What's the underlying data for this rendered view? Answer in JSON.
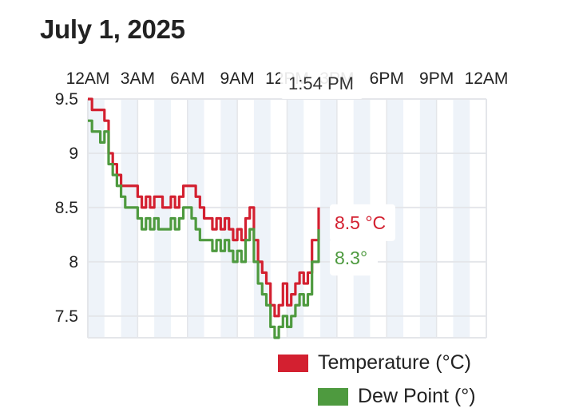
{
  "title": "July 1, 2025",
  "tooltip": {
    "time": "1:54 PM",
    "temperature_label": "8.5 °C",
    "dew_point_label": "8.3°"
  },
  "colors": {
    "temperature": "#d32030",
    "dew_point": "#4e9a3f",
    "grid": "#e4e6ea",
    "band": "#eef3f9"
  },
  "legend": [
    {
      "name": "Temperature (°C)",
      "color": "#d32030"
    },
    {
      "name": "Dew Point (°)",
      "color": "#4e9a3f"
    }
  ],
  "chart_data": {
    "type": "line",
    "title": "July 1, 2025",
    "x_unit": "hours since midnight",
    "x_tick_labels": [
      "12AM",
      "3AM",
      "6AM",
      "9AM",
      "12PM",
      "3PM",
      "6PM",
      "9PM",
      "12AM"
    ],
    "xlim": [
      0,
      24
    ],
    "y_ticks": [
      7.5,
      8,
      8.5,
      9,
      9.5
    ],
    "ylim": [
      7.3,
      9.5
    ],
    "grid": true,
    "legend_position": "bottom-right",
    "series": [
      {
        "name": "Temperature (°C)",
        "x": [
          0,
          0.25,
          0.5,
          0.75,
          1.0,
          1.25,
          1.5,
          1.75,
          2.0,
          2.25,
          2.5,
          2.75,
          3.0,
          3.25,
          3.5,
          3.75,
          4.0,
          4.25,
          4.5,
          4.75,
          5.0,
          5.25,
          5.5,
          5.75,
          6.0,
          6.25,
          6.5,
          6.75,
          7.0,
          7.25,
          7.5,
          7.75,
          8.0,
          8.25,
          8.5,
          8.75,
          9.0,
          9.25,
          9.5,
          9.75,
          10.0,
          10.25,
          10.5,
          10.75,
          11.0,
          11.25,
          11.5,
          11.75,
          12.0,
          12.25,
          12.5,
          12.75,
          13.0,
          13.25,
          13.5,
          13.9
        ],
        "values": [
          9.5,
          9.4,
          9.4,
          9.4,
          9.3,
          9.0,
          8.9,
          8.8,
          8.7,
          8.7,
          8.7,
          8.7,
          8.6,
          8.5,
          8.6,
          8.5,
          8.6,
          8.6,
          8.5,
          8.5,
          8.6,
          8.5,
          8.6,
          8.7,
          8.7,
          8.7,
          8.6,
          8.5,
          8.4,
          8.4,
          8.3,
          8.4,
          8.3,
          8.4,
          8.3,
          8.2,
          8.3,
          8.2,
          8.4,
          8.5,
          8.2,
          8.0,
          7.9,
          7.8,
          7.6,
          7.5,
          7.6,
          7.8,
          7.6,
          7.7,
          7.8,
          7.9,
          7.8,
          7.9,
          8.2,
          8.5
        ]
      },
      {
        "name": "Dew Point (°)",
        "x": [
          0,
          0.25,
          0.5,
          0.75,
          1.0,
          1.25,
          1.5,
          1.75,
          2.0,
          2.25,
          2.5,
          2.75,
          3.0,
          3.25,
          3.5,
          3.75,
          4.0,
          4.25,
          4.5,
          4.75,
          5.0,
          5.25,
          5.5,
          5.75,
          6.0,
          6.25,
          6.5,
          6.75,
          7.0,
          7.25,
          7.5,
          7.75,
          8.0,
          8.25,
          8.5,
          8.75,
          9.0,
          9.25,
          9.5,
          9.75,
          10.0,
          10.25,
          10.5,
          10.75,
          11.0,
          11.25,
          11.5,
          11.75,
          12.0,
          12.25,
          12.5,
          12.75,
          13.0,
          13.25,
          13.5,
          13.9
        ],
        "values": [
          9.3,
          9.2,
          9.2,
          9.1,
          9.2,
          8.9,
          8.8,
          8.7,
          8.6,
          8.5,
          8.5,
          8.5,
          8.4,
          8.3,
          8.4,
          8.3,
          8.4,
          8.3,
          8.3,
          8.3,
          8.4,
          8.3,
          8.4,
          8.5,
          8.5,
          8.4,
          8.3,
          8.2,
          8.2,
          8.2,
          8.1,
          8.2,
          8.1,
          8.2,
          8.1,
          8.0,
          8.1,
          8.0,
          8.2,
          8.3,
          8.0,
          7.8,
          7.7,
          7.6,
          7.4,
          7.3,
          7.4,
          7.5,
          7.4,
          7.5,
          7.6,
          7.7,
          7.6,
          7.7,
          8.0,
          8.3
        ]
      }
    ]
  }
}
